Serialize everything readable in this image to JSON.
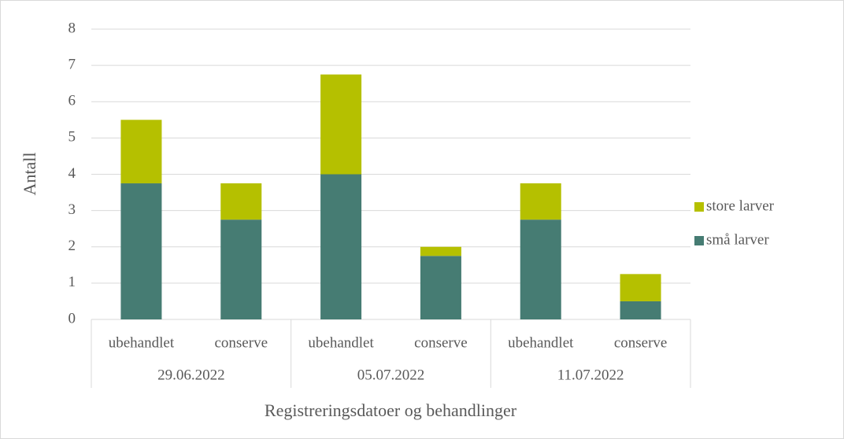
{
  "chart_data": {
    "type": "stacked_bar",
    "y_label": "Antall",
    "x_label": "Registreringsdatoer og behandlinger",
    "categories": [
      "ubehandlet",
      "conserve",
      "ubehandlet",
      "conserve",
      "ubehandlet",
      "conserve"
    ],
    "groups": [
      "29.06.2022",
      "05.07.2022",
      "11.07.2022"
    ],
    "series": [
      {
        "name": "små larver",
        "color": "#467c73",
        "values": [
          3.75,
          2.75,
          4,
          1.75,
          2.75,
          0.5
        ]
      },
      {
        "name": "store larver",
        "color": "#b5c000",
        "values": [
          1.75,
          1,
          2.75,
          0.25,
          1,
          0.75
        ]
      }
    ],
    "ylim": [
      0,
      8
    ],
    "yticks": [
      0,
      1,
      2,
      3,
      4,
      5,
      6,
      7,
      8
    ],
    "grid": true,
    "legend": "right"
  }
}
